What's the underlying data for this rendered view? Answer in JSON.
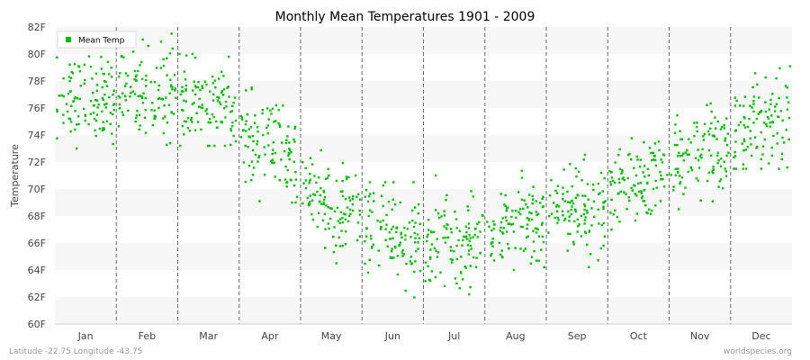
{
  "chart_data": {
    "type": "scatter",
    "title": "Monthly Mean Temperatures 1901 - 2009",
    "xlabel": "",
    "ylabel": "Temperature",
    "categories": [
      "Jan",
      "Feb",
      "Mar",
      "Apr",
      "May",
      "Jun",
      "Jul",
      "Aug",
      "Sep",
      "Oct",
      "Nov",
      "Dec"
    ],
    "ylim": [
      60,
      82
    ],
    "yticks": [
      "60F",
      "62F",
      "64F",
      "66F",
      "68F",
      "70F",
      "72F",
      "74F",
      "76F",
      "78F",
      "80F",
      "82F"
    ],
    "grid": "horizontal bands, dashed vertical month separators",
    "legend": {
      "position": "top-left",
      "label": "Mean Temp"
    },
    "series": [
      {
        "name": "Mean Temp",
        "color": "#00bb00",
        "years": "1901-2009",
        "monthly_mean_F": [
          76.8,
          77.4,
          76.2,
          72.9,
          68.7,
          66.6,
          65.9,
          67.2,
          68.6,
          70.3,
          72.2,
          75.0
        ],
        "monthly_spread_F": [
          1.6,
          1.7,
          1.5,
          1.7,
          1.8,
          1.7,
          1.6,
          1.6,
          1.6,
          1.6,
          1.7,
          1.7
        ],
        "monthly_range_F": [
          [
            73.0,
            81.0
          ],
          [
            73.0,
            81.5
          ],
          [
            73.2,
            80.0
          ],
          [
            69.0,
            77.8
          ],
          [
            64.5,
            73.5
          ],
          [
            61.8,
            70.5
          ],
          [
            61.0,
            71.0
          ],
          [
            63.2,
            71.5
          ],
          [
            64.0,
            74.5
          ],
          [
            66.5,
            76.5
          ],
          [
            68.5,
            79.0
          ],
          [
            71.5,
            79.5
          ]
        ]
      }
    ]
  },
  "footer": {
    "left": "Latitude -22.75 Longitude -43.75",
    "right": "worldspecies.org"
  }
}
